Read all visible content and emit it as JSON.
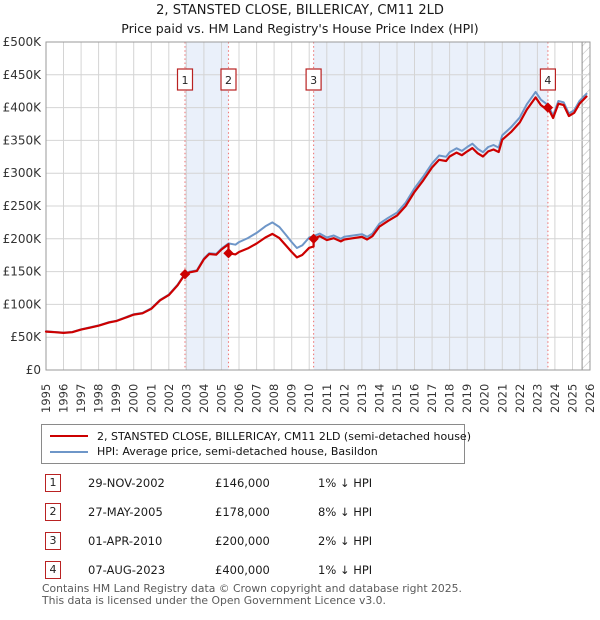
{
  "title": "2, STANSTED CLOSE, BILLERICAY, CM11 2LD",
  "subtitle": "Price paid vs. HM Land Registry's House Price Index (HPI)",
  "colors": {
    "property_line": "#cc0000",
    "hpi_line": "#6e96c8",
    "ownership_band": "#eaf0fa",
    "grid": "#d4d4d4",
    "frame": "#9a9a9a",
    "sale_dotted_line": "#ee7b7b",
    "sale_box_border": "#b92222",
    "hatch": "#b9b9b9",
    "tick_text": "#333333"
  },
  "chart_data": {
    "type": "line",
    "title": "2, STANSTED CLOSE, BILLERICAY, CM11 2LD",
    "subtitle": "Price paid vs. HM Land Registry's House Price Index (HPI)",
    "xlabel": "",
    "ylabel": "",
    "grid": true,
    "legend_position": "below",
    "xlim": [
      1995,
      2026
    ],
    "ylim": [
      0,
      500000
    ],
    "x_ticks": [
      1995,
      1996,
      1997,
      1998,
      1999,
      2000,
      2001,
      2002,
      2003,
      2004,
      2005,
      2006,
      2007,
      2008,
      2009,
      2010,
      2011,
      2012,
      2013,
      2014,
      2015,
      2016,
      2017,
      2018,
      2019,
      2020,
      2021,
      2022,
      2023,
      2024,
      2025,
      2026
    ],
    "y_ticks": [
      {
        "v": 0,
        "label": "£0"
      },
      {
        "v": 50000,
        "label": "£50K"
      },
      {
        "v": 100000,
        "label": "£100K"
      },
      {
        "v": 150000,
        "label": "£150K"
      },
      {
        "v": 200000,
        "label": "£200K"
      },
      {
        "v": 250000,
        "label": "£250K"
      },
      {
        "v": 300000,
        "label": "£300K"
      },
      {
        "v": 350000,
        "label": "£350K"
      },
      {
        "v": 400000,
        "label": "£400K"
      },
      {
        "v": 450000,
        "label": "£450K"
      },
      {
        "v": 500000,
        "label": "£500K"
      }
    ],
    "shaded_bands": [
      [
        2002.92,
        2005.4
      ],
      [
        2010.25,
        2023.6
      ]
    ],
    "hatched_region": [
      2025.55,
      2026
    ],
    "sale_markers": [
      {
        "n": "1",
        "year": 2002.92,
        "price": 146000
      },
      {
        "n": "2",
        "year": 2005.4,
        "price": 178000
      },
      {
        "n": "3",
        "year": 2010.25,
        "price": 200000
      },
      {
        "n": "4",
        "year": 2023.6,
        "price": 400000
      }
    ],
    "series": [
      {
        "name": "2, STANSTED CLOSE, BILLERICAY, CM11 2LD (semi-detached house)",
        "color": "#cc0000",
        "points": [
          [
            1995.0,
            58600
          ],
          [
            1995.5,
            57600
          ],
          [
            1996.0,
            56600
          ],
          [
            1996.5,
            57600
          ],
          [
            1997.0,
            61600
          ],
          [
            1997.5,
            64500
          ],
          [
            1998.0,
            67500
          ],
          [
            1998.6,
            72500
          ],
          [
            1999.0,
            74500
          ],
          [
            1999.5,
            79400
          ],
          [
            2000.0,
            84400
          ],
          [
            2000.5,
            86400
          ],
          [
            2001.0,
            93300
          ],
          [
            2001.5,
            106200
          ],
          [
            2002.0,
            114200
          ],
          [
            2002.5,
            129100
          ],
          [
            2002.92,
            146000
          ],
          [
            2003.2,
            149000
          ],
          [
            2003.6,
            151000
          ],
          [
            2004.0,
            168800
          ],
          [
            2004.3,
            176800
          ],
          [
            2004.7,
            175800
          ],
          [
            2005.0,
            183700
          ],
          [
            2005.4,
            191700
          ],
          [
            2005.4,
            178000
          ],
          [
            2005.8,
            176200
          ],
          [
            2006.0,
            179900
          ],
          [
            2006.5,
            185400
          ],
          [
            2007.0,
            192800
          ],
          [
            2007.5,
            202000
          ],
          [
            2007.9,
            207500
          ],
          [
            2008.3,
            201100
          ],
          [
            2008.7,
            189100
          ],
          [
            2009.0,
            179900
          ],
          [
            2009.3,
            171600
          ],
          [
            2009.6,
            175300
          ],
          [
            2010.0,
            186300
          ],
          [
            2010.25,
            188200
          ],
          [
            2010.25,
            200000
          ],
          [
            2010.6,
            203900
          ],
          [
            2011.0,
            198000
          ],
          [
            2011.4,
            200900
          ],
          [
            2011.8,
            196000
          ],
          [
            2012.0,
            199000
          ],
          [
            2012.5,
            200900
          ],
          [
            2013.0,
            202900
          ],
          [
            2013.3,
            199000
          ],
          [
            2013.6,
            203900
          ],
          [
            2014.0,
            218600
          ],
          [
            2014.5,
            227400
          ],
          [
            2015.0,
            235300
          ],
          [
            2015.5,
            250000
          ],
          [
            2016.0,
            271500
          ],
          [
            2016.5,
            289200
          ],
          [
            2017.0,
            308800
          ],
          [
            2017.4,
            320500
          ],
          [
            2017.8,
            318600
          ],
          [
            2018.0,
            325500
          ],
          [
            2018.4,
            331400
          ],
          [
            2018.7,
            327400
          ],
          [
            2019.0,
            333300
          ],
          [
            2019.3,
            338200
          ],
          [
            2019.6,
            330300
          ],
          [
            2019.9,
            325500
          ],
          [
            2020.2,
            333300
          ],
          [
            2020.5,
            336200
          ],
          [
            2020.8,
            332300
          ],
          [
            2021.0,
            351000
          ],
          [
            2021.5,
            362700
          ],
          [
            2022.0,
            377400
          ],
          [
            2022.4,
            397000
          ],
          [
            2022.9,
            415600
          ],
          [
            2023.2,
            403800
          ],
          [
            2023.6,
            396000
          ],
          [
            2023.6,
            400000
          ],
          [
            2023.9,
            384200
          ],
          [
            2024.2,
            406000
          ],
          [
            2024.5,
            404000
          ],
          [
            2024.8,
            387200
          ],
          [
            2025.1,
            392100
          ],
          [
            2025.4,
            406000
          ],
          [
            2025.8,
            416900
          ]
        ]
      },
      {
        "name": "HPI: Average price, semi-detached house, Basildon",
        "color": "#6e96c8",
        "points": [
          [
            1995.0,
            59000
          ],
          [
            1995.5,
            58000
          ],
          [
            1996.0,
            57000
          ],
          [
            1996.5,
            58000
          ],
          [
            1997.0,
            62000
          ],
          [
            1997.5,
            65000
          ],
          [
            1998.0,
            68000
          ],
          [
            1998.6,
            73000
          ],
          [
            1999.0,
            75000
          ],
          [
            1999.5,
            80000
          ],
          [
            2000.0,
            85000
          ],
          [
            2000.5,
            87000
          ],
          [
            2001.0,
            94000
          ],
          [
            2001.5,
            107000
          ],
          [
            2002.0,
            115000
          ],
          [
            2002.5,
            130000
          ],
          [
            2002.92,
            147000
          ],
          [
            2003.2,
            150000
          ],
          [
            2003.6,
            152000
          ],
          [
            2004.0,
            170000
          ],
          [
            2004.3,
            178000
          ],
          [
            2004.7,
            177000
          ],
          [
            2005.0,
            185000
          ],
          [
            2005.4,
            193000
          ],
          [
            2005.8,
            191000
          ],
          [
            2006.0,
            195000
          ],
          [
            2006.5,
            201000
          ],
          [
            2007.0,
            209000
          ],
          [
            2007.5,
            219000
          ],
          [
            2007.9,
            225000
          ],
          [
            2008.3,
            218000
          ],
          [
            2008.7,
            205000
          ],
          [
            2009.0,
            195000
          ],
          [
            2009.3,
            186000
          ],
          [
            2009.6,
            190000
          ],
          [
            2010.0,
            202000
          ],
          [
            2010.25,
            204000
          ],
          [
            2010.6,
            208000
          ],
          [
            2011.0,
            202000
          ],
          [
            2011.4,
            205000
          ],
          [
            2011.8,
            200000
          ],
          [
            2012.0,
            203000
          ],
          [
            2012.5,
            205000
          ],
          [
            2013.0,
            207000
          ],
          [
            2013.3,
            203000
          ],
          [
            2013.6,
            208000
          ],
          [
            2014.0,
            223000
          ],
          [
            2014.5,
            232000
          ],
          [
            2015.0,
            240000
          ],
          [
            2015.5,
            255000
          ],
          [
            2016.0,
            277000
          ],
          [
            2016.5,
            295000
          ],
          [
            2017.0,
            315000
          ],
          [
            2017.4,
            327000
          ],
          [
            2017.8,
            325000
          ],
          [
            2018.0,
            332000
          ],
          [
            2018.4,
            338000
          ],
          [
            2018.7,
            334000
          ],
          [
            2019.0,
            340000
          ],
          [
            2019.3,
            345000
          ],
          [
            2019.6,
            337000
          ],
          [
            2019.9,
            332000
          ],
          [
            2020.2,
            340000
          ],
          [
            2020.5,
            343000
          ],
          [
            2020.8,
            339000
          ],
          [
            2021.0,
            358000
          ],
          [
            2021.5,
            370000
          ],
          [
            2022.0,
            385000
          ],
          [
            2022.4,
            405000
          ],
          [
            2022.9,
            424000
          ],
          [
            2023.2,
            412000
          ],
          [
            2023.6,
            404000
          ],
          [
            2023.9,
            388000
          ],
          [
            2024.2,
            410000
          ],
          [
            2024.5,
            408000
          ],
          [
            2024.8,
            391000
          ],
          [
            2025.1,
            396000
          ],
          [
            2025.4,
            410000
          ],
          [
            2025.8,
            421000
          ]
        ]
      }
    ]
  },
  "legend": [
    {
      "label": "2, STANSTED CLOSE, BILLERICAY, CM11 2LD (semi-detached house)",
      "color": "#cc0000"
    },
    {
      "label": "HPI: Average price, semi-detached house, Basildon",
      "color": "#6e96c8"
    }
  ],
  "transactions": [
    {
      "num": "1",
      "date": "29-NOV-2002",
      "price": "£146,000",
      "vs_hpi": "1% ↓ HPI"
    },
    {
      "num": "2",
      "date": "27-MAY-2005",
      "price": "£178,000",
      "vs_hpi": "8% ↓ HPI"
    },
    {
      "num": "3",
      "date": "01-APR-2010",
      "price": "£200,000",
      "vs_hpi": "2% ↓ HPI"
    },
    {
      "num": "4",
      "date": "07-AUG-2023",
      "price": "£400,000",
      "vs_hpi": "1% ↓ HPI"
    }
  ],
  "footer": {
    "line1": "Contains HM Land Registry data © Crown copyright and database right 2025.",
    "line2": "This data is licensed under the Open Government Licence v3.0."
  }
}
